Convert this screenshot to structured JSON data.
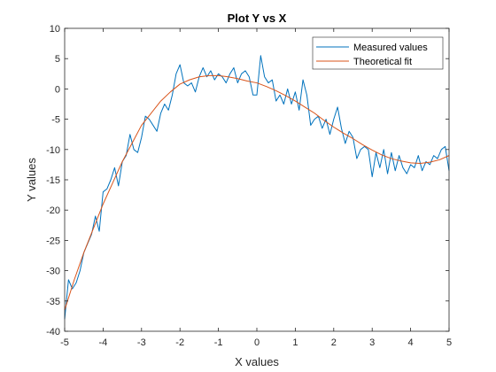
{
  "chart_data": {
    "type": "line",
    "title": "Plot Y vs X",
    "xlabel": "X values",
    "ylabel": "Y values",
    "xlim": [
      -5,
      5
    ],
    "ylim": [
      -40,
      10
    ],
    "xticks": [
      "-5",
      "-4",
      "-3",
      "-2",
      "-1",
      "0",
      "1",
      "2",
      "3",
      "4",
      "5"
    ],
    "yticks": [
      "10",
      "5",
      "0",
      "-5",
      "-10",
      "-15",
      "-20",
      "-25",
      "-30",
      "-35",
      "-40"
    ],
    "grid": false,
    "legend_position": "top-right",
    "series": [
      {
        "name": "Measured values",
        "color": "#0072BD",
        "x": [
          -5.0,
          -4.9,
          -4.8,
          -4.7,
          -4.6,
          -4.5,
          -4.4,
          -4.3,
          -4.2,
          -4.1,
          -4.0,
          -3.9,
          -3.8,
          -3.7,
          -3.6,
          -3.5,
          -3.4,
          -3.3,
          -3.2,
          -3.1,
          -3.0,
          -2.9,
          -2.8,
          -2.7,
          -2.6,
          -2.5,
          -2.4,
          -2.3,
          -2.2,
          -2.1,
          -2.0,
          -1.9,
          -1.8,
          -1.7,
          -1.6,
          -1.5,
          -1.4,
          -1.3,
          -1.2,
          -1.1,
          -1.0,
          -0.9,
          -0.8,
          -0.7,
          -0.6,
          -0.5,
          -0.4,
          -0.3,
          -0.2,
          -0.1,
          0.0,
          0.1,
          0.2,
          0.3,
          0.4,
          0.5,
          0.6,
          0.7,
          0.8,
          0.9,
          1.0,
          1.1,
          1.2,
          1.3,
          1.4,
          1.5,
          1.6,
          1.7,
          1.8,
          1.9,
          2.0,
          2.1,
          2.2,
          2.3,
          2.4,
          2.5,
          2.6,
          2.7,
          2.8,
          2.9,
          3.0,
          3.1,
          3.2,
          3.3,
          3.4,
          3.5,
          3.6,
          3.7,
          3.8,
          3.9,
          4.0,
          4.1,
          4.2,
          4.3,
          4.4,
          4.5,
          4.6,
          4.7,
          4.8,
          4.9,
          5.0
        ],
        "y": [
          -38.0,
          -31.5,
          -33.0,
          -32.0,
          -30.0,
          -27.0,
          -25.5,
          -24.0,
          -21.0,
          -23.5,
          -17.0,
          -16.5,
          -15.0,
          -13.0,
          -16.0,
          -12.0,
          -11.0,
          -7.5,
          -10.0,
          -10.5,
          -8.0,
          -4.5,
          -5.0,
          -6.0,
          -7.0,
          -4.0,
          -2.5,
          -3.5,
          -1.0,
          2.5,
          4.0,
          1.0,
          0.5,
          1.0,
          -0.5,
          2.0,
          3.5,
          2.0,
          3.0,
          1.5,
          2.5,
          2.0,
          1.0,
          2.5,
          3.5,
          1.0,
          2.5,
          3.0,
          2.0,
          -1.0,
          -1.0,
          5.5,
          2.0,
          1.0,
          1.5,
          -2.0,
          -1.0,
          -2.5,
          0.0,
          -2.5,
          -0.5,
          -3.5,
          1.5,
          -1.0,
          -6.0,
          -5.0,
          -4.5,
          -6.5,
          -5.0,
          -7.5,
          -5.0,
          -3.0,
          -6.5,
          -9.0,
          -7.0,
          -8.0,
          -11.5,
          -10.0,
          -9.5,
          -10.0,
          -14.5,
          -10.5,
          -13.0,
          -10.0,
          -14.0,
          -10.5,
          -13.5,
          -11.0,
          -13.0,
          -14.0,
          -12.5,
          -13.0,
          -11.0,
          -13.5,
          -12.0,
          -12.5,
          -11.0,
          -11.5,
          -10.0,
          -9.5,
          -13.5
        ]
      },
      {
        "name": "Theoretical fit",
        "color": "#D95319",
        "x": [
          -5.0,
          -4.75,
          -4.5,
          -4.25,
          -4.0,
          -3.75,
          -3.5,
          -3.25,
          -3.0,
          -2.75,
          -2.5,
          -2.25,
          -2.0,
          -1.75,
          -1.5,
          -1.25,
          -1.0,
          -0.75,
          -0.5,
          -0.25,
          0.0,
          0.25,
          0.5,
          0.75,
          1.0,
          1.25,
          1.5,
          1.75,
          2.0,
          2.25,
          2.5,
          2.75,
          3.0,
          3.25,
          3.5,
          3.75,
          4.0,
          4.25,
          4.5,
          4.75,
          5.0
        ],
        "y": [
          -36.5,
          -31.5,
          -27.0,
          -23.0,
          -19.0,
          -15.5,
          -12.0,
          -9.0,
          -6.0,
          -4.0,
          -2.0,
          -0.5,
          0.8,
          1.5,
          2.0,
          2.2,
          2.2,
          2.0,
          1.7,
          1.3,
          1.0,
          0.4,
          -0.3,
          -1.1,
          -2.0,
          -3.0,
          -4.0,
          -5.2,
          -6.3,
          -7.3,
          -8.2,
          -9.2,
          -10.1,
          -10.9,
          -11.5,
          -11.9,
          -12.2,
          -12.3,
          -12.1,
          -11.7,
          -11.0
        ]
      }
    ]
  }
}
